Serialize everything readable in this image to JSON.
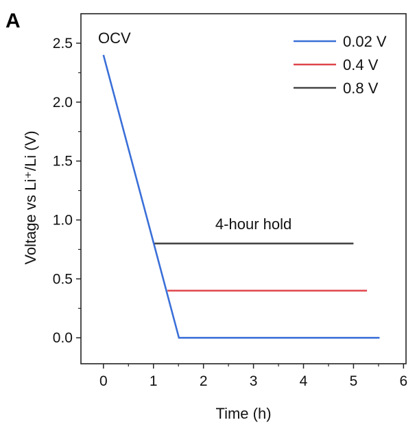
{
  "panel_label": "A",
  "chart_data": {
    "type": "line",
    "xlabel": "Time (h)",
    "ylabel": "Voltage vs Li⁺/Li (V)",
    "xlim": [
      -0.45,
      6.05
    ],
    "ylim": [
      -0.22,
      2.75
    ],
    "xticks": [
      0,
      1,
      2,
      3,
      4,
      5,
      6
    ],
    "xtick_labels": [
      "0",
      "1",
      "2",
      "3",
      "4",
      "5",
      "6"
    ],
    "yticks": [
      0.0,
      0.5,
      1.0,
      1.5,
      2.0,
      2.5
    ],
    "ytick_labels": [
      "0.0",
      "0.5",
      "1.0",
      "1.5",
      "2.0",
      "2.5"
    ],
    "grid": false,
    "legend_position": "top-right",
    "series": [
      {
        "name": "0.02 V",
        "color": "#3a6fd8",
        "x": [
          0,
          1.51,
          5.52
        ],
        "y": [
          2.4,
          0.0,
          0.0
        ]
      },
      {
        "name": "0.4 V",
        "color": "#e0454a",
        "x": [
          1.28,
          5.27
        ],
        "y": [
          0.4,
          0.4
        ]
      },
      {
        "name": "0.8 V",
        "color": "#444444",
        "x": [
          1.02,
          5.0
        ],
        "y": [
          0.8,
          0.8
        ]
      }
    ],
    "annotations": [
      {
        "text": "OCV",
        "x": 0.22,
        "y": 2.5
      },
      {
        "text": "4-hour hold",
        "x": 3.0,
        "y": 0.92
      }
    ]
  }
}
